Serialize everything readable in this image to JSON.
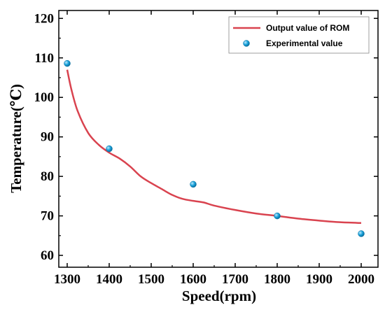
{
  "chart_data": {
    "type": "line",
    "xlabel": "Speed(rpm)",
    "ylabel": "Temperature(℃)",
    "xlim": [
      1280,
      2040
    ],
    "ylim": [
      57,
      122
    ],
    "xticks": [
      1300,
      1400,
      1500,
      1600,
      1700,
      1800,
      1900,
      2000
    ],
    "yticks": [
      60,
      70,
      80,
      90,
      100,
      110,
      120
    ],
    "legend_position": "top-right",
    "colors": {
      "line": "#d9434f",
      "marker": "#1aa3dc",
      "marker_highlight": "#bfe9fb",
      "marker_edge": "#0a6f9e"
    },
    "series": [
      {
        "name": "Output value of ROM",
        "type": "line",
        "x": [
          1300,
          1310,
          1325,
          1350,
          1375,
          1400,
          1425,
          1450,
          1475,
          1500,
          1525,
          1550,
          1575,
          1600,
          1625,
          1650,
          1700,
          1750,
          1800,
          1850,
          1900,
          1950,
          2000
        ],
        "y": [
          107,
          102,
          96.5,
          91,
          88,
          86,
          84.5,
          82.5,
          80,
          78.3,
          76.8,
          75.3,
          74.3,
          73.8,
          73.4,
          72.6,
          71.5,
          70.6,
          70.0,
          69.3,
          68.8,
          68.4,
          68.2
        ]
      },
      {
        "name": "Experimental value",
        "type": "scatter",
        "x": [
          1300,
          1400,
          1600,
          1800,
          2000
        ],
        "y": [
          108.6,
          87.0,
          78.0,
          70.0,
          65.5
        ]
      }
    ]
  }
}
